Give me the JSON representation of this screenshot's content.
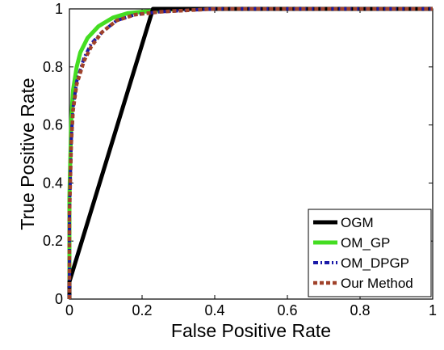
{
  "chart_data": {
    "type": "line",
    "title": "",
    "xlabel": "False Positive Rate",
    "ylabel": "True Positive Rate",
    "xlim": [
      0,
      1
    ],
    "ylim": [
      0,
      1
    ],
    "x_ticks": [
      "0",
      "0.2",
      "0.4",
      "0.6",
      "0.8",
      "1"
    ],
    "y_ticks": [
      "0",
      "0.2",
      "0.4",
      "0.6",
      "0.8",
      "1"
    ],
    "grid": false,
    "legend_position": "bottom-right",
    "series": [
      {
        "name": "OGM",
        "color": "#000000",
        "style": "solid",
        "x": [
          0,
          0.0,
          0.23,
          1.0
        ],
        "y": [
          0,
          0.06,
          1.0,
          1.0
        ]
      },
      {
        "name": "OM_GP",
        "color": "#44dd22",
        "style": "solid",
        "x": [
          0,
          0.0,
          0.005,
          0.01,
          0.02,
          0.03,
          0.05,
          0.08,
          0.12,
          0.16,
          0.2,
          0.3,
          0.5,
          1.0
        ],
        "y": [
          0,
          0.35,
          0.62,
          0.72,
          0.8,
          0.85,
          0.9,
          0.94,
          0.97,
          0.985,
          0.99,
          1.0,
          1.0,
          1.0
        ]
      },
      {
        "name": "OM_DPGP",
        "color": "#1a1aa8",
        "style": "dashdot",
        "x": [
          0,
          0.0,
          0.005,
          0.01,
          0.02,
          0.04,
          0.06,
          0.09,
          0.13,
          0.18,
          0.25,
          0.4,
          0.6,
          1.0
        ],
        "y": [
          0,
          0.3,
          0.55,
          0.66,
          0.75,
          0.83,
          0.88,
          0.92,
          0.96,
          0.98,
          0.99,
          1.0,
          1.0,
          1.0
        ]
      },
      {
        "name": "Our Method",
        "color": "#a0422a",
        "style": "dashed",
        "x": [
          0,
          0.0,
          0.005,
          0.01,
          0.02,
          0.04,
          0.06,
          0.09,
          0.13,
          0.18,
          0.25,
          0.4,
          0.6,
          1.0
        ],
        "y": [
          0,
          0.29,
          0.54,
          0.65,
          0.74,
          0.82,
          0.87,
          0.92,
          0.96,
          0.98,
          0.99,
          1.0,
          1.0,
          1.0
        ]
      }
    ]
  }
}
